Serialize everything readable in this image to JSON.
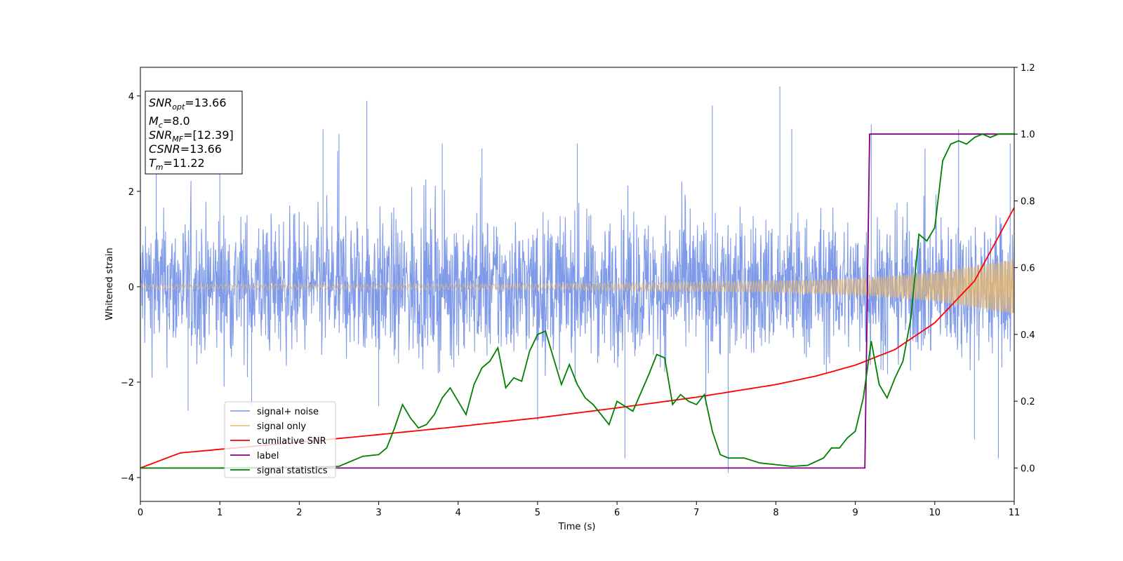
{
  "chart_data": {
    "type": "line",
    "xlabel": "Time (s)",
    "ylabel": "Whitened strain",
    "xlim": [
      0,
      11
    ],
    "ylim": [
      -4.5,
      4.6
    ],
    "y2lim": [
      -0.1,
      1.2
    ],
    "x_ticks": [
      "0",
      "1",
      "2",
      "3",
      "4",
      "5",
      "6",
      "7",
      "8",
      "9",
      "10",
      "11"
    ],
    "y_ticks": [
      "−4",
      "−2",
      "0",
      "2",
      "4"
    ],
    "y2_ticks": [
      "0.0",
      "0.2",
      "0.4",
      "0.6",
      "0.8",
      "1.0",
      "1.2"
    ],
    "grid": false,
    "legend_position": "lower-left",
    "annotation": {
      "snr_opt": {
        "sym": "SNR",
        "sub": "opt",
        "value": "=13.66"
      },
      "mc": {
        "sym": "M",
        "sub": "c",
        "value": "=8.0"
      },
      "snr_mf": {
        "sym": "SNR",
        "sub": "MF",
        "value": "=[12.39]"
      },
      "csnr": {
        "sym": "CSNR",
        "sub": "",
        "value": "=13.66"
      },
      "tm": {
        "sym": "T",
        "sub": "m",
        "value": "=11.22"
      }
    },
    "series": [
      {
        "name": "signal+ noise",
        "color": "#7895e8",
        "axis": "left",
        "noise_band": [
          -1.6,
          1.6
        ],
        "spikes": [
          [
            0.2,
            2.5
          ],
          [
            0.6,
            -2.6
          ],
          [
            1.0,
            2.7
          ],
          [
            1.4,
            -2.5
          ],
          [
            2.3,
            3.3
          ],
          [
            2.5,
            3.2
          ],
          [
            2.85,
            3.9
          ],
          [
            3.0,
            -2.5
          ],
          [
            3.8,
            3.0
          ],
          [
            4.3,
            2.9
          ],
          [
            5.0,
            -2.8
          ],
          [
            5.5,
            3.0
          ],
          [
            6.1,
            -3.6
          ],
          [
            7.2,
            3.8
          ],
          [
            7.4,
            -3.9
          ],
          [
            8.05,
            4.2
          ],
          [
            8.2,
            3.3
          ],
          [
            9.2,
            3.4
          ],
          [
            10.3,
            3.3
          ],
          [
            10.5,
            -3.2
          ],
          [
            10.8,
            -3.6
          ],
          [
            10.95,
            3.0
          ]
        ]
      },
      {
        "name": "signal only",
        "color": "#e6b870",
        "axis": "left",
        "amplitude": [
          [
            0,
            0.05
          ],
          [
            5,
            0.06
          ],
          [
            8,
            0.12
          ],
          [
            9,
            0.17
          ],
          [
            10,
            0.3
          ],
          [
            11,
            0.58
          ]
        ]
      },
      {
        "name": "cumilative SNR",
        "color": "#ff0000",
        "axis": "right",
        "x": [
          0,
          0.5,
          1,
          2,
          3,
          4,
          5,
          6,
          7,
          8,
          8.5,
          9,
          9.5,
          10,
          10.5,
          11
        ],
        "y": [
          0.0,
          0.045,
          0.056,
          0.077,
          0.1,
          0.124,
          0.15,
          0.18,
          0.212,
          0.25,
          0.275,
          0.308,
          0.355,
          0.435,
          0.56,
          0.78
        ]
      },
      {
        "name": "label",
        "color": "#800080",
        "axis": "right",
        "x": [
          0,
          9.12,
          9.18,
          11
        ],
        "y": [
          0,
          0,
          1,
          1
        ]
      },
      {
        "name": "signal statistics",
        "color": "#008000",
        "axis": "right",
        "x": [
          0,
          0.5,
          1,
          1.5,
          2,
          2.5,
          2.6,
          2.8,
          3.0,
          3.1,
          3.2,
          3.3,
          3.4,
          3.5,
          3.6,
          3.7,
          3.8,
          3.9,
          4.0,
          4.1,
          4.2,
          4.3,
          4.4,
          4.5,
          4.6,
          4.7,
          4.8,
          4.9,
          5.0,
          5.1,
          5.2,
          5.3,
          5.4,
          5.5,
          5.6,
          5.7,
          5.8,
          5.9,
          6.0,
          6.2,
          6.4,
          6.5,
          6.6,
          6.7,
          6.8,
          6.9,
          7.0,
          7.1,
          7.2,
          7.3,
          7.4,
          7.6,
          7.8,
          8.0,
          8.2,
          8.4,
          8.6,
          8.7,
          8.8,
          8.9,
          9.0,
          9.1,
          9.2,
          9.3,
          9.4,
          9.5,
          9.6,
          9.7,
          9.8,
          9.9,
          10.0,
          10.1,
          10.2,
          10.3,
          10.4,
          10.5,
          10.6,
          10.7,
          10.8,
          10.9,
          11.0
        ],
        "y": [
          0.0,
          0.0,
          0.0,
          0.001,
          0.002,
          0.005,
          0.015,
          0.035,
          0.04,
          0.06,
          0.12,
          0.19,
          0.15,
          0.12,
          0.13,
          0.16,
          0.21,
          0.24,
          0.2,
          0.16,
          0.25,
          0.3,
          0.32,
          0.36,
          0.24,
          0.27,
          0.26,
          0.35,
          0.4,
          0.41,
          0.33,
          0.25,
          0.31,
          0.25,
          0.21,
          0.19,
          0.16,
          0.13,
          0.2,
          0.17,
          0.28,
          0.34,
          0.33,
          0.19,
          0.22,
          0.2,
          0.19,
          0.22,
          0.11,
          0.04,
          0.03,
          0.03,
          0.015,
          0.01,
          0.005,
          0.008,
          0.03,
          0.06,
          0.06,
          0.09,
          0.11,
          0.21,
          0.38,
          0.25,
          0.21,
          0.27,
          0.32,
          0.45,
          0.7,
          0.68,
          0.72,
          0.92,
          0.97,
          0.98,
          0.97,
          0.99,
          1.0,
          0.99,
          1.0,
          1.0,
          1.0
        ]
      }
    ]
  }
}
